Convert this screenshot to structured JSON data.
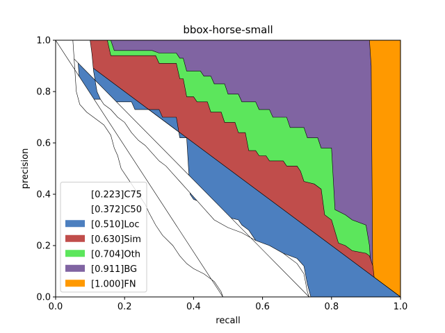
{
  "chart_data": {
    "type": "area",
    "title": "bbox-horse-small",
    "xlabel": "recall",
    "ylabel": "precision",
    "xlim": [
      0,
      1
    ],
    "ylim": [
      0,
      1
    ],
    "xticks": [
      "0.0",
      "0.2",
      "0.4",
      "0.6",
      "0.8",
      "1.0"
    ],
    "yticks": [
      "0.0",
      "0.2",
      "0.4",
      "0.6",
      "0.8",
      "1.0"
    ],
    "grid": false,
    "legend_position": "lower-left",
    "series": [
      {
        "name": "[0.223]C75",
        "color": "#ffffff",
        "points": [
          [
            0,
            1
          ],
          [
            0.05,
            1
          ],
          [
            0.06,
            0.8
          ],
          [
            0.07,
            0.75
          ],
          [
            0.09,
            0.72
          ],
          [
            0.11,
            0.7
          ],
          [
            0.13,
            0.68
          ],
          [
            0.14,
            0.67
          ],
          [
            0.16,
            0.63
          ],
          [
            0.17,
            0.58
          ],
          [
            0.18,
            0.55
          ],
          [
            0.19,
            0.5
          ],
          [
            0.21,
            0.46
          ],
          [
            0.22,
            0.44
          ],
          [
            0.26,
            0.36
          ],
          [
            0.27,
            0.33
          ],
          [
            0.29,
            0.28
          ],
          [
            0.31,
            0.24
          ],
          [
            0.34,
            0.2
          ],
          [
            0.36,
            0.16
          ],
          [
            0.38,
            0.13
          ],
          [
            0.4,
            0.11
          ],
          [
            0.43,
            0.09
          ],
          [
            0.46,
            0.06
          ],
          [
            0.48,
            0.02
          ],
          [
            0.485,
            0
          ]
        ]
      },
      {
        "name": "[0.372]C50",
        "color": "#ffffff",
        "points": [
          [
            0,
            1
          ],
          [
            0.1,
            1
          ],
          [
            0.105,
            0.95
          ],
          [
            0.11,
            0.88
          ],
          [
            0.12,
            0.8
          ],
          [
            0.13,
            0.77
          ],
          [
            0.14,
            0.75
          ],
          [
            0.16,
            0.73
          ],
          [
            0.18,
            0.7
          ],
          [
            0.2,
            0.68
          ],
          [
            0.22,
            0.64
          ],
          [
            0.24,
            0.61
          ],
          [
            0.26,
            0.59
          ],
          [
            0.28,
            0.56
          ],
          [
            0.3,
            0.53
          ],
          [
            0.32,
            0.51
          ],
          [
            0.34,
            0.48
          ],
          [
            0.36,
            0.45
          ],
          [
            0.38,
            0.42
          ],
          [
            0.4,
            0.39
          ],
          [
            0.42,
            0.36
          ],
          [
            0.44,
            0.33
          ],
          [
            0.46,
            0.3
          ],
          [
            0.5,
            0.27
          ],
          [
            0.54,
            0.25
          ],
          [
            0.58,
            0.22
          ],
          [
            0.62,
            0.2
          ],
          [
            0.66,
            0.17
          ],
          [
            0.7,
            0.13
          ],
          [
            0.72,
            0.09
          ],
          [
            0.73,
            0.02
          ],
          [
            0.735,
            0
          ]
        ]
      },
      {
        "name": "[0.510]Loc",
        "color": "#4c7fbf",
        "points": [
          [
            0,
            1
          ],
          [
            0.06,
            1
          ],
          [
            0.07,
            0.83
          ],
          [
            0.08,
            0.83
          ],
          [
            0.09,
            0.77
          ],
          [
            0.16,
            0.77
          ],
          [
            0.17,
            0.76
          ],
          [
            0.22,
            0.76
          ],
          [
            0.23,
            0.73
          ],
          [
            0.3,
            0.73
          ],
          [
            0.31,
            0.7
          ],
          [
            0.35,
            0.7
          ],
          [
            0.36,
            0.62
          ],
          [
            0.38,
            0.62
          ],
          [
            0.39,
            0.4
          ],
          [
            0.4,
            0.38
          ],
          [
            0.42,
            0.37
          ],
          [
            0.43,
            0.35
          ],
          [
            0.44,
            0.33
          ],
          [
            0.46,
            0.32
          ],
          [
            0.5,
            0.31
          ],
          [
            0.53,
            0.3
          ],
          [
            0.54,
            0.28
          ],
          [
            0.56,
            0.26
          ],
          [
            0.57,
            0.24
          ],
          [
            0.58,
            0.22
          ],
          [
            0.6,
            0.2
          ],
          [
            0.62,
            0.2
          ],
          [
            0.66,
            0.17
          ],
          [
            0.7,
            0.15
          ],
          [
            0.72,
            0.12
          ],
          [
            0.73,
            0.05
          ],
          [
            0.74,
            0
          ],
          [
            1,
            0
          ]
        ]
      },
      {
        "name": "[0.630]Sim",
        "color": "#c04d4b",
        "points": [
          [
            0,
            1
          ],
          [
            0.15,
            1
          ],
          [
            0.16,
            0.94
          ],
          [
            0.29,
            0.94
          ],
          [
            0.3,
            0.91
          ],
          [
            0.35,
            0.91
          ],
          [
            0.36,
            0.85
          ],
          [
            0.37,
            0.85
          ],
          [
            0.38,
            0.78
          ],
          [
            0.4,
            0.78
          ],
          [
            0.41,
            0.76
          ],
          [
            0.44,
            0.76
          ],
          [
            0.45,
            0.72
          ],
          [
            0.48,
            0.72
          ],
          [
            0.49,
            0.68
          ],
          [
            0.52,
            0.68
          ],
          [
            0.53,
            0.64
          ],
          [
            0.55,
            0.64
          ],
          [
            0.56,
            0.57
          ],
          [
            0.58,
            0.57
          ],
          [
            0.59,
            0.55
          ],
          [
            0.61,
            0.55
          ],
          [
            0.62,
            0.53
          ],
          [
            0.66,
            0.53
          ],
          [
            0.67,
            0.51
          ],
          [
            0.7,
            0.51
          ],
          [
            0.71,
            0.49
          ],
          [
            0.72,
            0.45
          ],
          [
            0.75,
            0.44
          ],
          [
            0.77,
            0.42
          ],
          [
            0.78,
            0.32
          ],
          [
            0.8,
            0.3
          ],
          [
            0.82,
            0.21
          ],
          [
            0.84,
            0.2
          ],
          [
            0.86,
            0.18
          ],
          [
            0.9,
            0.17
          ],
          [
            0.91,
            0.16
          ],
          [
            0.92,
            0.12
          ],
          [
            0.93,
            0
          ],
          [
            1,
            0
          ]
        ]
      },
      {
        "name": "[0.704]Oth",
        "color": "#5ce65c",
        "points": [
          [
            0,
            1
          ],
          [
            0.16,
            1
          ],
          [
            0.17,
            0.96
          ],
          [
            0.28,
            0.96
          ],
          [
            0.3,
            0.95
          ],
          [
            0.35,
            0.95
          ],
          [
            0.36,
            0.93
          ],
          [
            0.37,
            0.93
          ],
          [
            0.38,
            0.88
          ],
          [
            0.42,
            0.88
          ],
          [
            0.43,
            0.86
          ],
          [
            0.45,
            0.86
          ],
          [
            0.46,
            0.83
          ],
          [
            0.49,
            0.83
          ],
          [
            0.5,
            0.79
          ],
          [
            0.53,
            0.79
          ],
          [
            0.54,
            0.76
          ],
          [
            0.58,
            0.76
          ],
          [
            0.59,
            0.73
          ],
          [
            0.62,
            0.73
          ],
          [
            0.63,
            0.7
          ],
          [
            0.67,
            0.7
          ],
          [
            0.68,
            0.66
          ],
          [
            0.72,
            0.66
          ],
          [
            0.73,
            0.62
          ],
          [
            0.76,
            0.62
          ],
          [
            0.77,
            0.58
          ],
          [
            0.8,
            0.58
          ],
          [
            0.81,
            0.34
          ],
          [
            0.84,
            0.32
          ],
          [
            0.86,
            0.3
          ],
          [
            0.9,
            0.28
          ],
          [
            0.91,
            0.2
          ],
          [
            0.92,
            0
          ],
          [
            1,
            0
          ]
        ]
      },
      {
        "name": "[0.911]BG",
        "color": "#8064a2",
        "points": [
          [
            0,
            1
          ],
          [
            0.91,
            1
          ],
          [
            0.915,
            0.9
          ],
          [
            0.92,
            0
          ],
          [
            1,
            0
          ]
        ]
      },
      {
        "name": "[1.000]FN",
        "color": "#ff9900",
        "points": [
          [
            0,
            1
          ],
          [
            1,
            1
          ],
          [
            1,
            0
          ]
        ]
      }
    ]
  }
}
